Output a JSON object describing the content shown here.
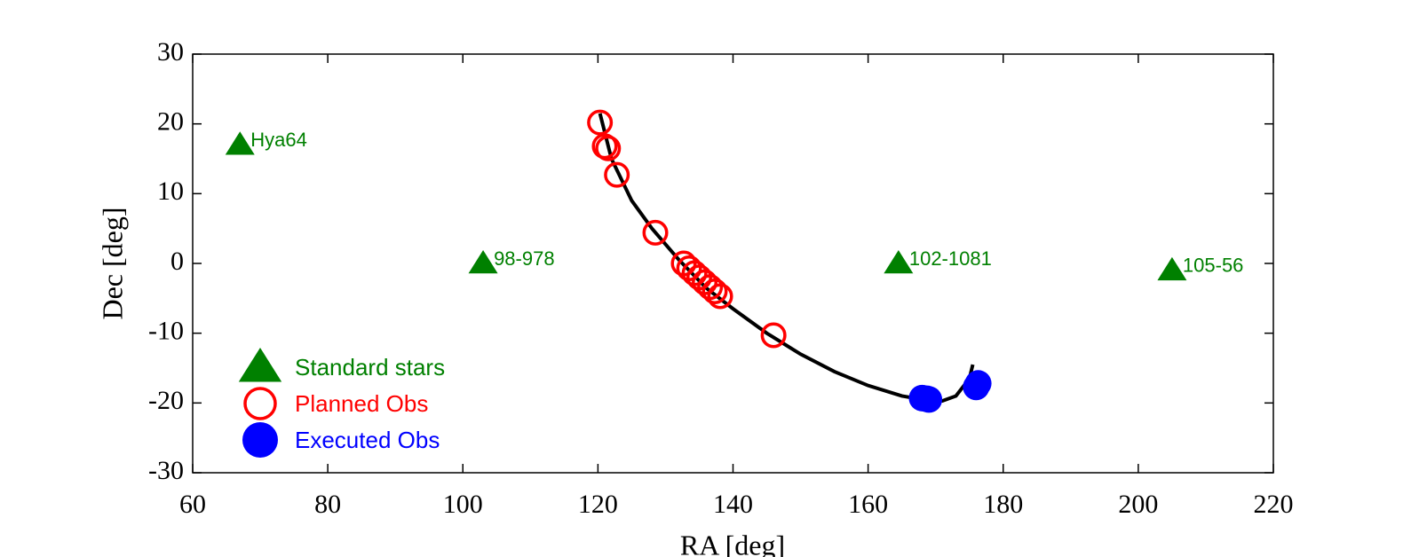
{
  "chart_data": {
    "type": "scatter",
    "xlabel": "RA [deg]",
    "ylabel": "Dec [deg]",
    "xlim": [
      60,
      220
    ],
    "xticks": [
      60,
      80,
      100,
      120,
      140,
      160,
      180,
      200,
      220
    ],
    "ylim": [
      -30,
      30
    ],
    "yticks": [
      -30,
      -20,
      -10,
      0,
      10,
      20,
      30
    ],
    "legend": "lower left",
    "curve": {
      "color": "#000000",
      "x": [
        120.3,
        122,
        125,
        128,
        132,
        136,
        140,
        145,
        150,
        155,
        160,
        165,
        168,
        171,
        173,
        175,
        175.5
      ],
      "y": [
        21.5,
        15,
        9,
        5,
        0.5,
        -3.5,
        -6.5,
        -10,
        -13,
        -15.5,
        -17.5,
        -19,
        -19.5,
        -19.7,
        -19,
        -16.5,
        -14.5
      ]
    },
    "series": [
      {
        "name": "Standard stars",
        "color": "#008000",
        "marker": "triangle",
        "x": [
          67,
          103,
          164.5,
          205
        ],
        "values": [
          17,
          0,
          0,
          -1
        ],
        "labels": [
          "Hya64",
          "98-978",
          "102-1081",
          "105-56"
        ]
      },
      {
        "name": "Planned Obs",
        "color": "#ff0000",
        "marker": "circle-open",
        "x": [
          120.3,
          121,
          121.5,
          122.8,
          128.5,
          132.7,
          133.5,
          134.3,
          135,
          135.8,
          136.6,
          137.3,
          138.1,
          146
        ],
        "values": [
          20.2,
          16.8,
          16.5,
          12.7,
          4.4,
          0,
          -0.7,
          -1.4,
          -2,
          -2.7,
          -3.4,
          -4,
          -4.7,
          -10.3
        ]
      },
      {
        "name": "Executed Obs",
        "color": "#0000ff",
        "marker": "circle-filled",
        "x": [
          168,
          168.7,
          169,
          176,
          176.3
        ],
        "values": [
          -19.3,
          -19.4,
          -19.5,
          -17.7,
          -17.2
        ]
      }
    ]
  }
}
